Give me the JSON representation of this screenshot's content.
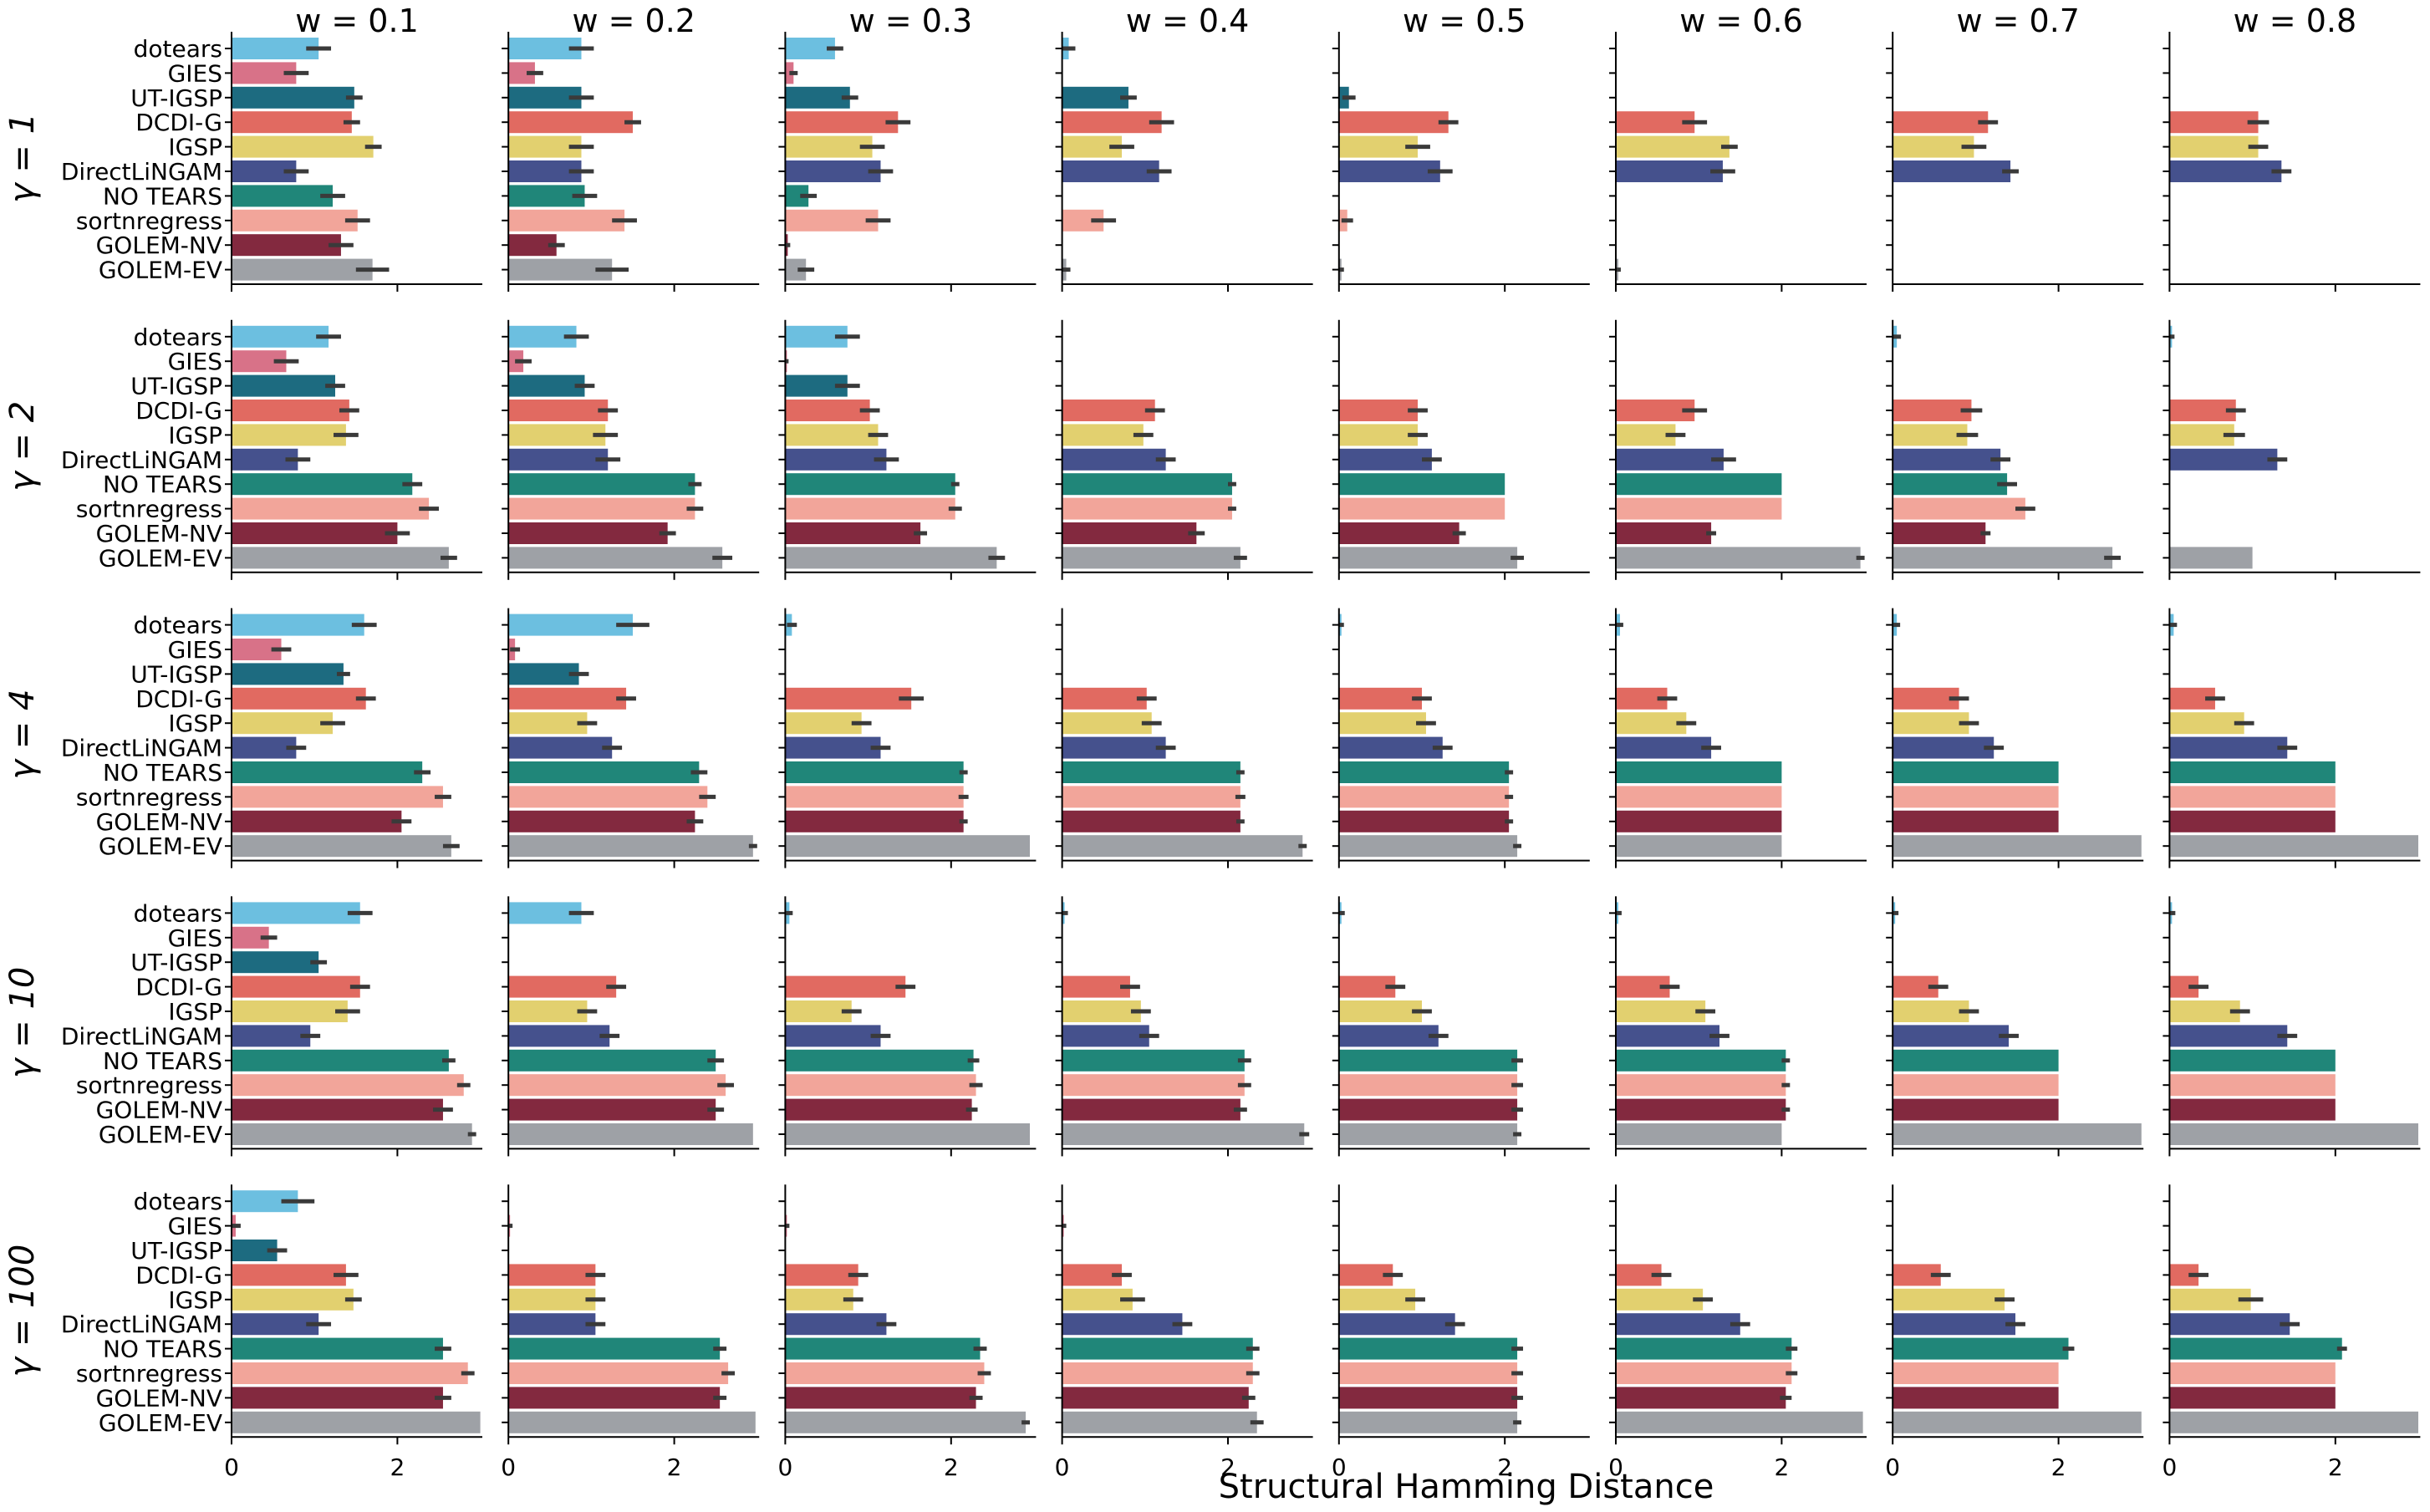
{
  "chart_data": {
    "type": "bar",
    "orientation": "horizontal",
    "xlabel": "Structural Hamming Distance",
    "xlim": [
      0,
      3
    ],
    "xticks": [
      0,
      2
    ],
    "col_titles": [
      "w = 0.1",
      "w = 0.2",
      "w = 0.3",
      "w = 0.4",
      "w = 0.5",
      "w = 0.6",
      "w = 0.7",
      "w = 0.8"
    ],
    "row_labels": [
      "γ = 1",
      "γ = 2",
      "γ = 4",
      "γ = 10",
      "γ = 100"
    ],
    "methods": [
      "dotears",
      "GIES",
      "UT-IGSP",
      "DCDI-G",
      "IGSP",
      "DirectLiNGAM",
      "NO TEARS",
      "sortnregress",
      "GOLEM-NV",
      "GOLEM-EV"
    ],
    "colors": [
      "#6cbfe0",
      "#d87288",
      "#1d6b80",
      "#e16a61",
      "#e2d06f",
      "#45518d",
      "#208679",
      "#f2a59a",
      "#83293f",
      "#9ea1a6"
    ],
    "panels": [
      [
        {
          "values": [
            1.05,
            0.78,
            1.48,
            1.45,
            1.71,
            0.78,
            1.22,
            1.52,
            1.32,
            1.7
          ],
          "errors": [
            0.15,
            0.15,
            0.1,
            0.1,
            0.1,
            0.15,
            0.15,
            0.15,
            0.15,
            0.2
          ]
        },
        {
          "values": [
            0.88,
            0.32,
            0.88,
            1.5,
            0.88,
            0.88,
            0.92,
            1.4,
            0.58,
            1.25
          ],
          "errors": [
            0.15,
            0.1,
            0.15,
            0.1,
            0.15,
            0.15,
            0.15,
            0.15,
            0.1,
            0.2
          ]
        },
        {
          "values": [
            0.6,
            0.1,
            0.78,
            1.36,
            1.05,
            1.15,
            0.28,
            1.12,
            0.03,
            0.25
          ],
          "errors": [
            0.1,
            0.05,
            0.1,
            0.15,
            0.15,
            0.15,
            0.1,
            0.15,
            0.03,
            0.1
          ]
        },
        {
          "values": [
            0.08,
            0,
            0.8,
            1.2,
            0.72,
            1.17,
            0,
            0.5,
            0,
            0.05
          ],
          "errors": [
            0.08,
            0,
            0.1,
            0.15,
            0.15,
            0.15,
            0,
            0.15,
            0,
            0.05
          ]
        },
        {
          "values": [
            0,
            0,
            0.12,
            1.32,
            0.95,
            1.22,
            0,
            0.1,
            0,
            0.03
          ],
          "errors": [
            0,
            0,
            0.08,
            0.12,
            0.15,
            0.15,
            0,
            0.07,
            0,
            0.03
          ]
        },
        {
          "values": [
            0,
            0,
            0,
            0.95,
            1.37,
            1.29,
            0,
            0,
            0,
            0.03
          ],
          "errors": [
            0,
            0,
            0,
            0.15,
            0.1,
            0.15,
            0,
            0,
            0,
            0.03
          ]
        },
        {
          "values": [
            0,
            0,
            0,
            1.15,
            0.98,
            1.42,
            0,
            0,
            0,
            0
          ],
          "errors": [
            0,
            0,
            0,
            0.12,
            0.15,
            0.1,
            0,
            0,
            0,
            0
          ]
        },
        {
          "values": [
            0,
            0,
            0,
            1.07,
            1.07,
            1.35,
            0,
            0,
            0,
            0
          ],
          "errors": [
            0,
            0,
            0,
            0.13,
            0.12,
            0.12,
            0,
            0,
            0,
            0
          ]
        }
      ],
      [
        {
          "values": [
            1.17,
            0.66,
            1.25,
            1.42,
            1.38,
            0.8,
            2.18,
            2.38,
            2.0,
            2.62
          ],
          "errors": [
            0.15,
            0.15,
            0.12,
            0.12,
            0.15,
            0.15,
            0.12,
            0.12,
            0.15,
            0.1
          ]
        },
        {
          "values": [
            0.82,
            0.18,
            0.92,
            1.2,
            1.17,
            1.2,
            2.25,
            2.25,
            1.92,
            2.58
          ],
          "errors": [
            0.15,
            0.1,
            0.12,
            0.12,
            0.15,
            0.15,
            0.08,
            0.1,
            0.1,
            0.12
          ]
        },
        {
          "values": [
            0.75,
            0.02,
            0.75,
            1.02,
            1.12,
            1.22,
            2.05,
            2.05,
            1.63,
            2.55
          ],
          "errors": [
            0.15,
            0.02,
            0.15,
            0.12,
            0.12,
            0.15,
            0.05,
            0.08,
            0.08,
            0.1
          ]
        },
        {
          "values": [
            0,
            0,
            0,
            1.12,
            0.98,
            1.25,
            2.05,
            2.05,
            1.62,
            2.15
          ],
          "errors": [
            0,
            0,
            0,
            0.12,
            0.12,
            0.12,
            0.05,
            0.05,
            0.1,
            0.08
          ]
        },
        {
          "values": [
            0,
            0,
            0,
            0.95,
            0.95,
            1.12,
            2.0,
            2.0,
            1.45,
            2.15
          ],
          "errors": [
            0,
            0,
            0,
            0.12,
            0.12,
            0.12,
            0,
            0,
            0.08,
            0.08
          ]
        },
        {
          "values": [
            0,
            0,
            0,
            0.95,
            0.72,
            1.3,
            2.0,
            2.0,
            1.15,
            2.95
          ],
          "errors": [
            0,
            0,
            0,
            0.15,
            0.12,
            0.15,
            0,
            0,
            0.06,
            0.05
          ]
        },
        {
          "values": [
            0.05,
            0,
            0,
            0.95,
            0.9,
            1.3,
            1.38,
            1.6,
            1.12,
            2.65
          ],
          "errors": [
            0.05,
            0,
            0,
            0.13,
            0.13,
            0.12,
            0.12,
            0.12,
            0.06,
            0.1
          ]
        },
        {
          "values": [
            0.03,
            0,
            0,
            0.8,
            0.78,
            1.3,
            0,
            0,
            0,
            1.0
          ],
          "errors": [
            0.03,
            0,
            0,
            0.12,
            0.13,
            0.12,
            0,
            0,
            0,
            0
          ]
        }
      ],
      [
        {
          "values": [
            1.6,
            0.6,
            1.35,
            1.62,
            1.22,
            0.78,
            2.3,
            2.55,
            2.05,
            2.65
          ],
          "errors": [
            0.15,
            0.12,
            0.08,
            0.12,
            0.15,
            0.12,
            0.1,
            0.1,
            0.12,
            0.1
          ]
        },
        {
          "values": [
            1.5,
            0.08,
            0.85,
            1.42,
            0.95,
            1.25,
            2.3,
            2.4,
            2.25,
            2.95
          ],
          "errors": [
            0.2,
            0.06,
            0.12,
            0.12,
            0.12,
            0.12,
            0.1,
            0.1,
            0.1,
            0.05
          ]
        },
        {
          "values": [
            0.08,
            0,
            0,
            1.52,
            0.92,
            1.15,
            2.15,
            2.15,
            2.15,
            2.95
          ],
          "errors": [
            0.06,
            0,
            0,
            0.15,
            0.12,
            0.12,
            0.05,
            0.06,
            0.05,
            0
          ]
        },
        {
          "values": [
            0,
            0,
            0,
            1.02,
            1.08,
            1.25,
            2.15,
            2.15,
            2.15,
            2.9
          ],
          "errors": [
            0,
            0,
            0,
            0.12,
            0.12,
            0.12,
            0.05,
            0.06,
            0.05,
            0.05
          ]
        },
        {
          "values": [
            0.03,
            0,
            0,
            1.0,
            1.05,
            1.25,
            2.05,
            2.05,
            2.05,
            2.15
          ],
          "errors": [
            0.03,
            0,
            0,
            0.12,
            0.12,
            0.12,
            0.05,
            0.05,
            0.05,
            0.05
          ]
        },
        {
          "values": [
            0.05,
            0,
            0,
            0.62,
            0.85,
            1.15,
            2.0,
            2.0,
            2.0,
            2.0
          ],
          "errors": [
            0.04,
            0,
            0,
            0.12,
            0.12,
            0.12,
            0,
            0,
            0,
            0
          ]
        },
        {
          "values": [
            0.05,
            0,
            0,
            0.8,
            0.92,
            1.22,
            2.0,
            2.0,
            2.0,
            3.0
          ],
          "errors": [
            0.04,
            0,
            0,
            0.12,
            0.12,
            0.12,
            0,
            0,
            0,
            0
          ]
        },
        {
          "values": [
            0.05,
            0,
            0,
            0.55,
            0.9,
            1.42,
            2.0,
            2.0,
            2.0,
            3.0
          ],
          "errors": [
            0.04,
            0,
            0,
            0.12,
            0.12,
            0.12,
            0,
            0,
            0,
            0
          ]
        }
      ],
      [
        {
          "values": [
            1.55,
            0.45,
            1.05,
            1.55,
            1.4,
            0.95,
            2.62,
            2.8,
            2.55,
            2.9
          ],
          "errors": [
            0.15,
            0.1,
            0.1,
            0.12,
            0.15,
            0.12,
            0.08,
            0.08,
            0.12,
            0.05
          ]
        },
        {
          "values": [
            0.88,
            0,
            0,
            1.3,
            0.95,
            1.22,
            2.5,
            2.62,
            2.5,
            2.95
          ],
          "errors": [
            0.15,
            0,
            0,
            0.12,
            0.12,
            0.12,
            0.1,
            0.1,
            0.1,
            0
          ]
        },
        {
          "values": [
            0.05,
            0,
            0,
            1.45,
            0.8,
            1.15,
            2.27,
            2.3,
            2.25,
            2.95
          ],
          "errors": [
            0.04,
            0,
            0,
            0.12,
            0.12,
            0.12,
            0.07,
            0.08,
            0.07,
            0
          ]
        },
        {
          "values": [
            0.03,
            0,
            0,
            0.82,
            0.95,
            1.05,
            2.2,
            2.2,
            2.15,
            2.92
          ],
          "errors": [
            0.04,
            0,
            0,
            0.12,
            0.12,
            0.12,
            0.08,
            0.08,
            0.08,
            0.06
          ]
        },
        {
          "values": [
            0.03,
            0,
            0,
            0.68,
            1.0,
            1.2,
            2.15,
            2.15,
            2.15,
            2.15
          ],
          "errors": [
            0.04,
            0,
            0,
            0.12,
            0.12,
            0.12,
            0.07,
            0.07,
            0.07,
            0.05
          ]
        },
        {
          "values": [
            0.03,
            0,
            0,
            0.65,
            1.08,
            1.25,
            2.05,
            2.05,
            2.05,
            2.0
          ],
          "errors": [
            0.04,
            0,
            0,
            0.12,
            0.12,
            0.12,
            0.05,
            0.05,
            0.05,
            0
          ]
        },
        {
          "values": [
            0.03,
            0,
            0,
            0.55,
            0.92,
            1.4,
            2.0,
            2.0,
            2.0,
            3.0
          ],
          "errors": [
            0.04,
            0,
            0,
            0.12,
            0.12,
            0.12,
            0,
            0,
            0,
            0
          ]
        },
        {
          "values": [
            0.03,
            0,
            0,
            0.35,
            0.85,
            1.42,
            2.0,
            2.0,
            2.0,
            3.0
          ],
          "errors": [
            0.04,
            0,
            0,
            0.12,
            0.12,
            0.12,
            0,
            0,
            0,
            0
          ]
        }
      ],
      [
        {
          "values": [
            0.8,
            0.05,
            0.55,
            1.38,
            1.47,
            1.05,
            2.55,
            2.85,
            2.55,
            3.0
          ],
          "errors": [
            0.2,
            0.06,
            0.12,
            0.15,
            0.1,
            0.15,
            0.1,
            0.08,
            0.1,
            0
          ]
        },
        {
          "values": [
            0,
            0.02,
            0,
            1.05,
            1.05,
            1.05,
            2.55,
            2.65,
            2.55,
            2.98
          ],
          "errors": [
            0,
            0.03,
            0,
            0.12,
            0.12,
            0.12,
            0.08,
            0.08,
            0.08,
            0
          ]
        },
        {
          "values": [
            0,
            0.02,
            0,
            0.88,
            0.82,
            1.22,
            2.35,
            2.4,
            2.3,
            2.9
          ],
          "errors": [
            0,
            0.03,
            0,
            0.12,
            0.12,
            0.12,
            0.08,
            0.08,
            0.08,
            0.05
          ]
        },
        {
          "values": [
            0,
            0.02,
            0,
            0.72,
            0.85,
            1.45,
            2.3,
            2.3,
            2.25,
            2.35
          ],
          "errors": [
            0,
            0.03,
            0,
            0.12,
            0.15,
            0.12,
            0.08,
            0.08,
            0.08,
            0.08
          ]
        },
        {
          "values": [
            0,
            0,
            0,
            0.65,
            0.92,
            1.4,
            2.15,
            2.15,
            2.15,
            2.15
          ],
          "errors": [
            0,
            0,
            0,
            0.12,
            0.12,
            0.12,
            0.07,
            0.07,
            0.07,
            0.05
          ]
        },
        {
          "values": [
            0,
            0,
            0,
            0.55,
            1.05,
            1.5,
            2.12,
            2.12,
            2.05,
            2.98
          ],
          "errors": [
            0,
            0,
            0,
            0.12,
            0.12,
            0.12,
            0.07,
            0.07,
            0.07,
            0
          ]
        },
        {
          "values": [
            0,
            0,
            0,
            0.58,
            1.35,
            1.48,
            2.12,
            2.0,
            2.0,
            3.0
          ],
          "errors": [
            0,
            0,
            0,
            0.12,
            0.12,
            0.12,
            0.07,
            0,
            0,
            0
          ]
        },
        {
          "values": [
            0,
            0,
            0,
            0.35,
            0.98,
            1.45,
            2.08,
            2.0,
            2.0,
            3.0
          ],
          "errors": [
            0,
            0,
            0,
            0.12,
            0.15,
            0.12,
            0.06,
            0,
            0,
            0
          ]
        }
      ]
    ]
  }
}
